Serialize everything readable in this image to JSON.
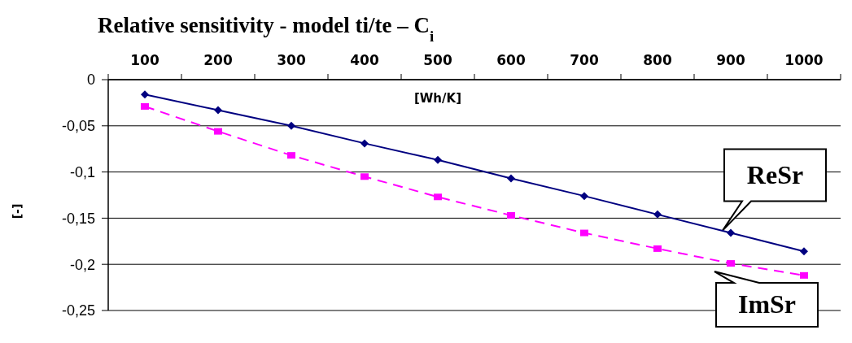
{
  "chart_data": {
    "type": "line",
    "title": "Relative sensitivity - model ti/te – C$_{i}$",
    "xlabel": "[Wh/K]",
    "ylabel": "[-]",
    "categories": [
      "100",
      "200",
      "300",
      "400",
      "500",
      "600",
      "700",
      "800",
      "900",
      "1000"
    ],
    "series": [
      {
        "name": "ReSr",
        "color": "#000080",
        "marker": "diamond",
        "line_style": "solid",
        "values": [
          -0.016,
          -0.033,
          -0.05,
          -0.069,
          -0.087,
          -0.107,
          -0.126,
          -0.146,
          -0.166,
          -0.186
        ]
      },
      {
        "name": "ImSr",
        "color": "#ff00ff",
        "marker": "square",
        "line_style": "dashed",
        "values": [
          -0.029,
          -0.056,
          -0.082,
          -0.105,
          -0.127,
          -0.147,
          -0.166,
          -0.183,
          -0.199,
          -0.212
        ]
      }
    ],
    "ylim": [
      -0.25,
      0
    ],
    "yticks": [
      {
        "value": 0,
        "label": "0"
      },
      {
        "value": -0.05,
        "label": "-0,05"
      },
      {
        "value": -0.1,
        "label": "-0,1"
      },
      {
        "value": -0.15,
        "label": "-0,15"
      },
      {
        "value": -0.2,
        "label": "-0,2"
      },
      {
        "value": -0.25,
        "label": "-0,25"
      }
    ],
    "grid": "y",
    "legend": false
  }
}
